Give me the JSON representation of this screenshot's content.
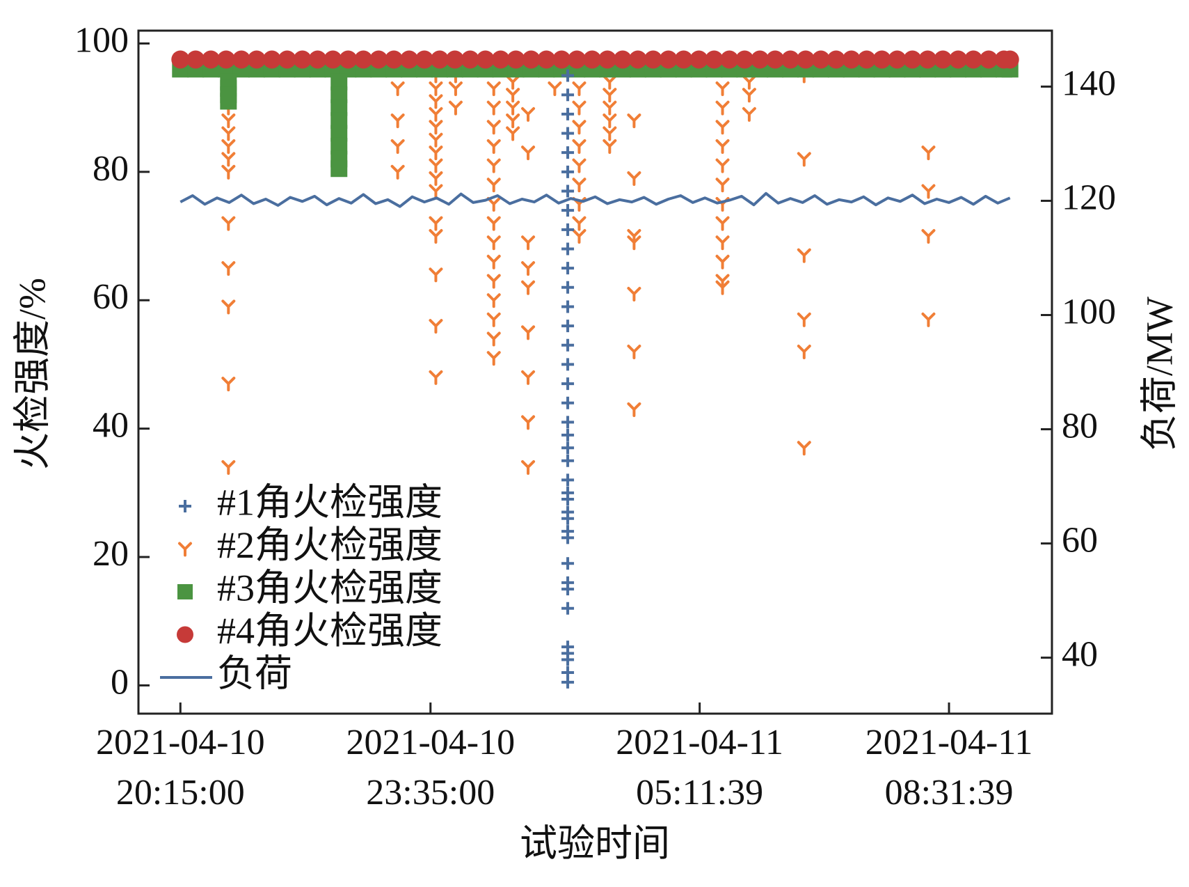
{
  "chart_data": {
    "type": "scatter",
    "x_label": "试验时间",
    "y_label": "火检强度/%",
    "y2_label": "负荷/MW",
    "xlim": [
      -55,
      1143
    ],
    "xticks": [
      {
        "value": 0,
        "label": "2021-04-10\n20:15:00"
      },
      {
        "value": 328,
        "label": "2021-04-10\n23:35:00"
      },
      {
        "value": 681,
        "label": "2021-04-11\n05:11:39"
      },
      {
        "value": 1008,
        "label": "2021-04-11\n08:31:39"
      }
    ],
    "ylim": [
      -4.4,
      102
    ],
    "yticks": [
      0,
      20,
      40,
      60,
      80,
      100
    ],
    "y2lim": [
      30.2,
      149.8
    ],
    "y2ticks": [
      40,
      60,
      80,
      100,
      120,
      140
    ],
    "legend": "lower left",
    "series": [
      {
        "name": "#1角火检强度",
        "marker": "plus",
        "color": "#4a6e9f",
        "x": [
          508,
          508,
          508,
          508,
          508,
          508,
          508,
          508,
          508,
          508,
          508,
          508,
          508,
          508,
          508,
          508,
          508,
          508,
          508,
          508,
          508,
          508,
          508,
          508,
          508,
          508,
          508,
          508,
          508,
          508,
          508,
          508,
          508,
          508,
          508,
          508,
          508,
          508
        ],
        "values": [
          95,
          92,
          89,
          86,
          83,
          80,
          77,
          74,
          71,
          68,
          65,
          62,
          59,
          56,
          53,
          50,
          47,
          44,
          41,
          39,
          37,
          35,
          32,
          30,
          29,
          27,
          26,
          24,
          23,
          19,
          16,
          15,
          12,
          6,
          5,
          4,
          2,
          0.5
        ]
      },
      {
        "name": "#2角火检强度",
        "marker": "tri_down",
        "color": "#f07e36",
        "x": [
          63,
          63,
          63,
          63,
          63,
          63,
          63,
          63,
          63,
          63,
          63,
          63,
          63,
          63,
          285,
          285,
          285,
          285,
          335,
          335,
          335,
          335,
          335,
          335,
          335,
          335,
          335,
          335,
          335,
          335,
          335,
          335,
          335,
          361,
          361,
          361,
          411,
          411,
          411,
          411,
          411,
          411,
          411,
          411,
          411,
          411,
          411,
          411,
          411,
          411,
          411,
          411,
          436,
          436,
          436,
          436,
          436,
          436,
          456,
          456,
          456,
          456,
          456,
          456,
          456,
          456,
          456,
          491,
          523,
          523,
          523,
          523,
          523,
          523,
          523,
          523,
          523,
          523,
          563,
          563,
          563,
          563,
          563,
          563,
          563,
          595,
          595,
          595,
          595,
          595,
          595,
          595,
          711,
          711,
          711,
          711,
          711,
          711,
          711,
          711,
          711,
          711,
          711,
          711,
          711,
          746,
          746,
          746,
          818,
          818,
          818,
          818,
          818,
          818,
          981,
          981,
          981,
          981
        ],
        "values": [
          96,
          94,
          92,
          90,
          88,
          86,
          84,
          82,
          80,
          72,
          65,
          59,
          47,
          34,
          93,
          88,
          84,
          80,
          95,
          93,
          91,
          89,
          87,
          85,
          83,
          81,
          79,
          77,
          72,
          70,
          64,
          56,
          48,
          95,
          93,
          90,
          96,
          93,
          90,
          87,
          84,
          81,
          78,
          75,
          72,
          69,
          66,
          63,
          60,
          57,
          54,
          51,
          96,
          94,
          92,
          90,
          88,
          86,
          89,
          83,
          69,
          65,
          62,
          55,
          48,
          41,
          34,
          93,
          96,
          93,
          90,
          87,
          84,
          81,
          78,
          75,
          72,
          70,
          96,
          94,
          92,
          90,
          88,
          86,
          84,
          88,
          79,
          70,
          69,
          61,
          52,
          43,
          96,
          93,
          90,
          87,
          84,
          81,
          78,
          75,
          72,
          69,
          66,
          63,
          62,
          94,
          92,
          89,
          95,
          82,
          67,
          57,
          52,
          37,
          83,
          77,
          70,
          57
        ]
      },
      {
        "name": "#3角火检强度",
        "marker": "square",
        "color": "#4b9441",
        "x": [
          0,
          20,
          40,
          60,
          80,
          100,
          120,
          140,
          160,
          180,
          200,
          220,
          240,
          260,
          280,
          300,
          320,
          340,
          360,
          380,
          400,
          420,
          440,
          460,
          480,
          500,
          520,
          540,
          560,
          580,
          600,
          620,
          640,
          660,
          680,
          700,
          720,
          740,
          760,
          780,
          800,
          820,
          840,
          860,
          880,
          900,
          920,
          940,
          960,
          980,
          1000,
          1020,
          1040,
          1060,
          1080,
          1088,
          63,
          63,
          63,
          63,
          208,
          208,
          208,
          208,
          208,
          208,
          208,
          208
        ],
        "values": [
          96,
          96,
          96,
          96,
          96,
          96,
          96,
          96,
          96,
          96,
          96,
          96,
          96,
          96,
          96,
          96,
          96,
          96,
          96,
          96,
          96,
          96,
          96,
          96,
          96,
          96,
          96,
          96,
          96,
          96,
          96,
          96,
          96,
          96,
          96,
          96,
          96,
          96,
          96,
          96,
          96,
          96,
          96,
          96,
          96,
          96,
          96,
          96,
          96,
          96,
          96,
          96,
          96,
          96,
          96,
          96,
          94,
          93,
          92,
          91,
          94,
          92,
          90,
          88,
          86,
          84,
          82,
          80.5
        ]
      },
      {
        "name": "#4角火检强度",
        "marker": "circle",
        "color": "#c63a38",
        "x": [
          0,
          20,
          40,
          60,
          80,
          100,
          120,
          140,
          160,
          180,
          200,
          220,
          240,
          260,
          280,
          300,
          320,
          340,
          360,
          380,
          400,
          420,
          440,
          460,
          480,
          500,
          520,
          540,
          560,
          580,
          600,
          620,
          640,
          660,
          680,
          700,
          720,
          740,
          760,
          780,
          800,
          820,
          840,
          860,
          880,
          900,
          920,
          940,
          960,
          980,
          1000,
          1020,
          1040,
          1060,
          1080,
          1088
        ],
        "values": [
          97.5,
          97.5,
          97.5,
          97.5,
          97.5,
          97.5,
          97.5,
          97.5,
          97.5,
          97.5,
          97.5,
          97.5,
          97.5,
          97.5,
          97.5,
          97.5,
          97.5,
          97.5,
          97.5,
          97.5,
          97.5,
          97.5,
          97.5,
          97.5,
          97.5,
          97.5,
          97.5,
          97.5,
          97.5,
          97.5,
          97.5,
          97.5,
          97.5,
          97.5,
          97.5,
          97.5,
          97.5,
          97.5,
          97.5,
          97.5,
          97.5,
          97.5,
          97.5,
          97.5,
          97.5,
          97.5,
          97.5,
          97.5,
          97.5,
          97.5,
          97.5,
          97.5,
          97.5,
          97.5,
          97.5,
          97.5
        ]
      },
      {
        "name": "负荷",
        "style": "line",
        "axis": "y2",
        "color": "#4a6e9f",
        "x": [
          0,
          16,
          32,
          48,
          64,
          80,
          96,
          112,
          128,
          144,
          160,
          176,
          192,
          208,
          224,
          240,
          256,
          272,
          288,
          304,
          320,
          336,
          352,
          368,
          384,
          400,
          416,
          432,
          448,
          464,
          480,
          496,
          512,
          528,
          544,
          560,
          576,
          592,
          608,
          624,
          640,
          656,
          672,
          688,
          704,
          720,
          736,
          752,
          768,
          784,
          800,
          816,
          832,
          848,
          864,
          880,
          896,
          912,
          928,
          944,
          960,
          976,
          992,
          1008,
          1024,
          1040,
          1056,
          1072,
          1088
        ],
        "values": [
          119.8,
          120.9,
          119.4,
          120.5,
          119.7,
          121.0,
          119.5,
          120.3,
          119.2,
          120.6,
          119.9,
          120.8,
          119.3,
          120.4,
          119.6,
          121.1,
          119.5,
          120.2,
          119.0,
          120.7,
          119.8,
          120.5,
          119.4,
          121.2,
          119.7,
          120.1,
          120.9,
          119.5,
          120.3,
          119.8,
          121.0,
          119.6,
          120.4,
          119.9,
          120.7,
          119.5,
          120.2,
          119.8,
          120.6,
          119.4,
          120.3,
          120.9,
          119.7,
          120.5,
          119.6,
          120.1,
          120.8,
          119.3,
          121.3,
          119.6,
          120.4,
          119.7,
          120.9,
          119.4,
          120.2,
          119.8,
          120.7,
          119.3,
          120.5,
          119.9,
          121.0,
          119.5,
          120.3,
          119.7,
          120.6,
          119.4,
          120.8,
          119.6,
          120.5
        ]
      }
    ]
  }
}
